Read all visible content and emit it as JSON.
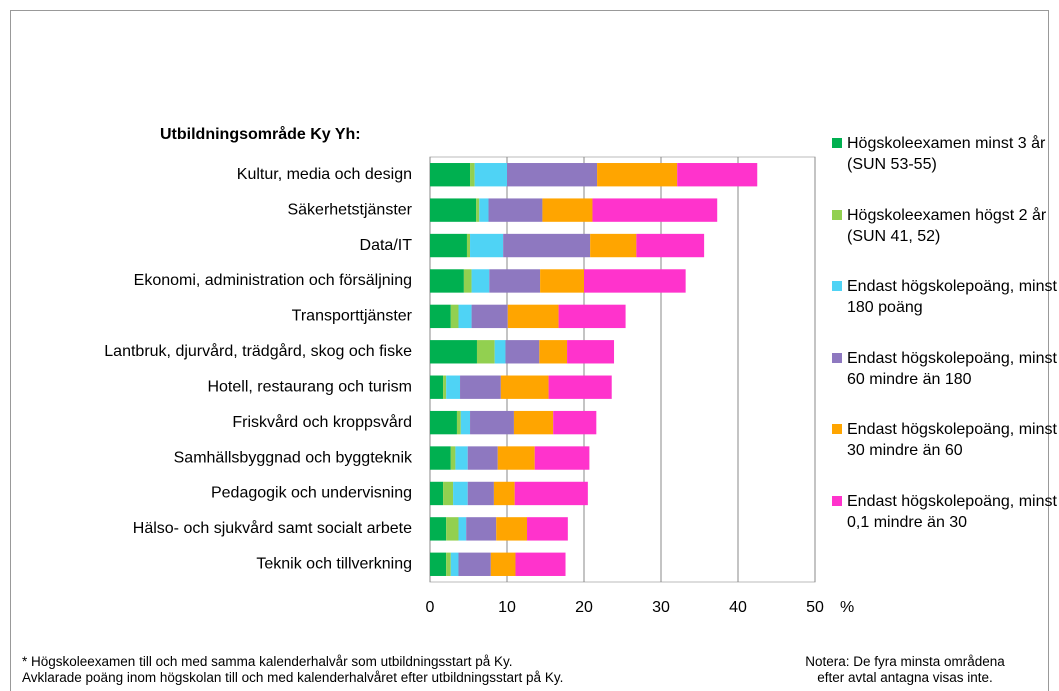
{
  "chart_data": {
    "type": "stacked-barh",
    "axis_title": "Utbildningsområde Ky Yh:",
    "xlabel": "%",
    "categories": [
      "Kultur, media och design",
      "Säkerhetstjänster",
      "Data/IT",
      "Ekonomi, administration och försäljning",
      "Transporttjänster",
      "Lantbruk, djurvård, trädgård, skog och fiske",
      "Hotell, restaurang och turism",
      "Friskvård och kroppsvård",
      "Samhällsbyggnad och byggteknik",
      "Pedagogik och undervisning",
      "Hälso- och sjukvård samt socialt arbete",
      "Teknik och tillverkning"
    ],
    "series": [
      {
        "name": "Högskoleexamen minst 3 år (SUN 53-55)",
        "color": "#00b050",
        "values": [
          5.2,
          6.0,
          4.8,
          4.4,
          2.7,
          6.1,
          1.7,
          3.5,
          2.7,
          1.7,
          2.1,
          2.1
        ]
      },
      {
        "name": "Högskoleexamen högst 2 år (SUN 41, 52)",
        "color": "#92d050",
        "values": [
          0.6,
          0.4,
          0.4,
          1.0,
          1.0,
          2.3,
          0.4,
          0.5,
          0.6,
          1.3,
          1.6,
          0.6
        ]
      },
      {
        "name": "Endast högskolepoäng, minst 180 poäng",
        "color": "#4fd3f5",
        "values": [
          4.2,
          1.2,
          4.3,
          2.3,
          1.7,
          1.4,
          1.8,
          1.2,
          1.6,
          1.9,
          1.0,
          1.0
        ]
      },
      {
        "name": "Endast högskolepoäng, minst 60 mindre än 180",
        "color": "#8e78c0",
        "values": [
          11.7,
          7.0,
          11.3,
          6.6,
          4.7,
          4.4,
          5.3,
          5.7,
          3.9,
          3.4,
          3.9,
          4.2
        ]
      },
      {
        "name": "Endast högskolepoäng, minst 30 mindre än 60",
        "color": "#ffa500",
        "values": [
          10.4,
          6.5,
          6.0,
          5.7,
          6.6,
          3.6,
          6.2,
          5.1,
          4.8,
          2.7,
          4.0,
          3.2
        ]
      },
      {
        "name": "Endast högskolepoäng, minst 0,1 mindre än 30",
        "color": "#ff33cc",
        "values": [
          10.4,
          16.2,
          8.8,
          13.2,
          8.7,
          6.1,
          8.2,
          5.6,
          7.1,
          9.5,
          5.3,
          6.5
        ]
      }
    ],
    "xlim": [
      0,
      50
    ],
    "xticks": [
      0,
      10,
      20,
      30,
      40,
      50
    ],
    "grid": true,
    "notes_left": [
      "* Högskoleexamen till och med samma kalenderhalvår som utbildningsstart på Ky.",
      "Avklarade poäng inom högskolan till och med kalenderhalvåret efter utbildningsstart på Ky."
    ],
    "notes_right": [
      "Notera: De fyra minsta områdena",
      "efter avtal antagna visas inte."
    ]
  }
}
